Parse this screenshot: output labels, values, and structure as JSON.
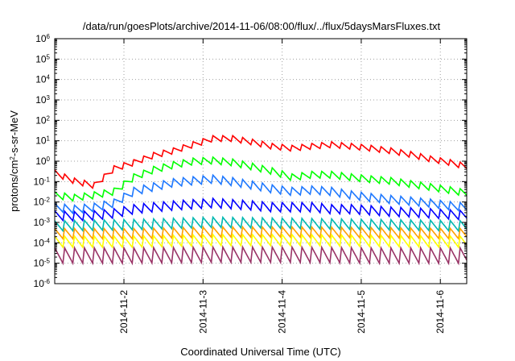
{
  "chart_data": {
    "type": "line",
    "title": "/data/run/goesPlots/archive/2014-11-06/08:00/flux/../flux/5daysMarsFluxes.txt",
    "xlabel": "Coordinated Universal Time (UTC)",
    "ylabel": {
      "prefix": "protons/cm",
      "superscript": "2",
      "suffix": "-s-sr-MeV"
    },
    "yscale": "log",
    "ylim": [
      1e-06,
      1000000.0
    ],
    "y_tick_labels": [
      {
        "base": "10",
        "exponent": "-6",
        "value": 1e-06
      },
      {
        "base": "10",
        "exponent": "-5",
        "value": 1e-05
      },
      {
        "base": "10",
        "exponent": "-4",
        "value": 0.0001
      },
      {
        "base": "10",
        "exponent": "-3",
        "value": 0.001
      },
      {
        "base": "10",
        "exponent": "-2",
        "value": 0.01
      },
      {
        "base": "10",
        "exponent": "-1",
        "value": 0.1
      },
      {
        "base": "10",
        "exponent": "0",
        "value": 1
      },
      {
        "base": "10",
        "exponent": "1",
        "value": 10
      },
      {
        "base": "10",
        "exponent": "2",
        "value": 100
      },
      {
        "base": "10",
        "exponent": "3",
        "value": 1000
      },
      {
        "base": "10",
        "exponent": "4",
        "value": 10000
      },
      {
        "base": "10",
        "exponent": "5",
        "value": 100000
      },
      {
        "base": "10",
        "exponent": "6",
        "value": 1000000
      }
    ],
    "xlim": [
      "2014-11-01 03:00",
      "2014-11-06 08:00"
    ],
    "x_ticks": [
      "2014-11-2",
      "2014-11-3",
      "2014-11-4",
      "2014-11-5",
      "2014-11-6"
    ],
    "x_tick_dates": [
      "2014-11-02 00:00",
      "2014-11-03 00:00",
      "2014-11-04 00:00",
      "2014-11-05 00:00",
      "2014-11-06 00:00"
    ],
    "grid": true,
    "series": [
      {
        "color": "#ff0000",
        "x": [
          "2014-11-01 03:00",
          "2014-11-01 09:00",
          "2014-11-01 15:00",
          "2014-11-01 21:00",
          "2014-11-02 03:00",
          "2014-11-02 09:00",
          "2014-11-02 15:00",
          "2014-11-02 21:00",
          "2014-11-03 03:00",
          "2014-11-03 09:00",
          "2014-11-03 15:00",
          "2014-11-03 21:00",
          "2014-11-04 03:00",
          "2014-11-04 09:00",
          "2014-11-04 15:00",
          "2014-11-04 21:00",
          "2014-11-05 03:00",
          "2014-11-05 09:00",
          "2014-11-05 15:00",
          "2014-11-05 21:00",
          "2014-11-06 03:00",
          "2014-11-06 08:00"
        ],
        "y": [
          0.25,
          0.1,
          0.06,
          0.4,
          0.8,
          1.8,
          3,
          6,
          12,
          12,
          8,
          5,
          4,
          5,
          6,
          5,
          4,
          3,
          2,
          1.2,
          0.8,
          0.5
        ],
        "sawtooth_factor": 2.2
      },
      {
        "color": "#00ff00",
        "x": [
          "2014-11-01 03:00",
          "2014-11-01 09:00",
          "2014-11-01 15:00",
          "2014-11-01 21:00",
          "2014-11-02 03:00",
          "2014-11-02 09:00",
          "2014-11-02 15:00",
          "2014-11-02 21:00",
          "2014-11-03 03:00",
          "2014-11-03 09:00",
          "2014-11-03 15:00",
          "2014-11-03 21:00",
          "2014-11-04 03:00",
          "2014-11-04 09:00",
          "2014-11-04 15:00",
          "2014-11-04 21:00",
          "2014-11-05 03:00",
          "2014-11-05 09:00",
          "2014-11-05 15:00",
          "2014-11-05 21:00",
          "2014-11-06 03:00",
          "2014-11-06 08:00"
        ],
        "y": [
          0.02,
          0.015,
          0.02,
          0.03,
          0.15,
          0.35,
          0.6,
          0.9,
          1,
          0.8,
          0.5,
          0.3,
          0.15,
          0.2,
          0.2,
          0.15,
          0.12,
          0.1,
          0.07,
          0.05,
          0.035,
          0.025
        ],
        "sawtooth_factor": 2.5
      },
      {
        "color": "#1e78ff",
        "x": [
          "2014-11-01 03:00",
          "2014-11-01 09:00",
          "2014-11-01 15:00",
          "2014-11-01 21:00",
          "2014-11-02 03:00",
          "2014-11-02 09:00",
          "2014-11-02 15:00",
          "2014-11-02 21:00",
          "2014-11-03 03:00",
          "2014-11-03 09:00",
          "2014-11-03 15:00",
          "2014-11-03 21:00",
          "2014-11-04 03:00",
          "2014-11-04 09:00",
          "2014-11-04 15:00",
          "2014-11-04 21:00",
          "2014-11-05 03:00",
          "2014-11-05 09:00",
          "2014-11-05 15:00",
          "2014-11-05 21:00",
          "2014-11-06 03:00",
          "2014-11-06 08:00"
        ],
        "y": [
          0.005,
          0.004,
          0.005,
          0.008,
          0.03,
          0.05,
          0.08,
          0.1,
          0.12,
          0.09,
          0.06,
          0.04,
          0.03,
          0.035,
          0.03,
          0.02,
          0.015,
          0.012,
          0.01,
          0.008,
          0.006,
          0.005
        ],
        "sawtooth_factor": 3
      },
      {
        "color": "#0000ff",
        "x": [
          "2014-11-01 03:00",
          "2014-11-01 09:00",
          "2014-11-01 15:00",
          "2014-11-01 21:00",
          "2014-11-02 03:00",
          "2014-11-02 09:00",
          "2014-11-02 15:00",
          "2014-11-02 21:00",
          "2014-11-03 03:00",
          "2014-11-03 09:00",
          "2014-11-03 15:00",
          "2014-11-03 21:00",
          "2014-11-04 03:00",
          "2014-11-04 09:00",
          "2014-11-04 15:00",
          "2014-11-04 21:00",
          "2014-11-05 03:00",
          "2014-11-05 09:00",
          "2014-11-05 15:00",
          "2014-11-05 21:00",
          "2014-11-06 03:00",
          "2014-11-06 08:00"
        ],
        "y": [
          0.002,
          0.0018,
          0.002,
          0.0025,
          0.004,
          0.005,
          0.006,
          0.007,
          0.008,
          0.007,
          0.006,
          0.005,
          0.005,
          0.005,
          0.004,
          0.004,
          0.0035,
          0.003,
          0.0028,
          0.0025,
          0.0022,
          0.002
        ],
        "sawtooth_factor": 3.5
      },
      {
        "color": "#00b8b0",
        "x": [
          "2014-11-01 03:00",
          "2014-11-02 03:00",
          "2014-11-03 03:00",
          "2014-11-04 03:00",
          "2014-11-05 03:00",
          "2014-11-06 08:00"
        ],
        "y": [
          0.0006,
          0.0007,
          0.0009,
          0.0008,
          0.0007,
          0.0006
        ],
        "sawtooth_factor": 4
      },
      {
        "color": "#ffa000",
        "x": [
          "2014-11-01 03:00",
          "2014-11-02 03:00",
          "2014-11-03 03:00",
          "2014-11-04 03:00",
          "2014-11-05 03:00",
          "2014-11-06 08:00"
        ],
        "y": [
          0.00025,
          0.00025,
          0.0003,
          0.0003,
          0.00028,
          0.00025
        ],
        "sawtooth_factor": 4
      },
      {
        "color": "#ffff00",
        "x": [
          "2014-11-01 03:00",
          "2014-11-02 03:00",
          "2014-11-03 03:00",
          "2014-11-04 03:00",
          "2014-11-05 03:00",
          "2014-11-06 08:00"
        ],
        "y": [
          0.0001,
          0.0001,
          0.00012,
          0.00012,
          0.00011,
          0.0001
        ],
        "sawtooth_factor": 4.5
      },
      {
        "color": "#993366",
        "x": [
          "2014-11-01 03:00",
          "2014-11-02 03:00",
          "2014-11-03 03:00",
          "2014-11-04 03:00",
          "2014-11-05 03:00",
          "2014-11-06 08:00"
        ],
        "y": [
          2e-05,
          2e-05,
          2.2e-05,
          2.2e-05,
          2e-05,
          2e-05
        ],
        "sawtooth_factor": 8
      }
    ]
  }
}
